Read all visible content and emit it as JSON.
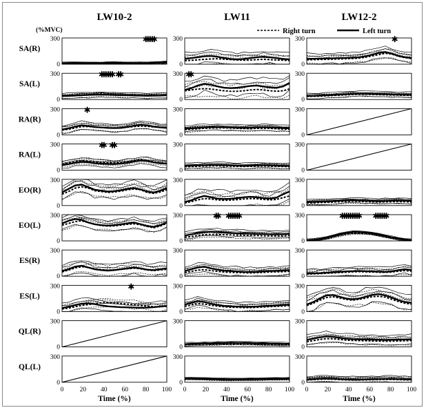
{
  "chart_data": {
    "type": "line",
    "columns": [
      "LW10-2",
      "LW11",
      "LW12-2"
    ],
    "rows": [
      "SA(R)",
      "SA(L)",
      "RA(R)",
      "RA(L)",
      "EO(R)",
      "EO(L)",
      "ES(R)",
      "ES(L)",
      "QL(R)",
      "QL(L)"
    ],
    "ylabel_unit": "(%MVC)",
    "xlabel": "Time (%)",
    "xlim": [
      0,
      100
    ],
    "ylim": [
      0,
      300
    ],
    "xticks": [
      "0",
      "20",
      "40",
      "60",
      "80",
      "100"
    ],
    "yticks": [
      "0",
      "300"
    ],
    "legend": {
      "position": "top-right",
      "items": [
        {
          "name": "Right turn",
          "style": "dashed"
        },
        {
          "name": "Left turn",
          "style": "solid"
        }
      ]
    },
    "significance_marker": "✱",
    "significance": [
      {
        "column": "LW10-2",
        "row": "SA(R)",
        "x": [
          80,
          82,
          84,
          86,
          88
        ]
      },
      {
        "column": "LW10-2",
        "row": "SA(L)",
        "x": [
          38,
          40,
          42,
          44,
          46,
          48,
          54,
          56
        ]
      },
      {
        "column": "LW10-2",
        "row": "RA(R)",
        "x": [
          24
        ]
      },
      {
        "column": "LW10-2",
        "row": "RA(L)",
        "x": [
          38,
          40,
          48,
          50
        ]
      },
      {
        "column": "LW10-2",
        "row": "ES(L)",
        "x": [
          66
        ]
      },
      {
        "column": "LW11",
        "row": "SA(L)",
        "x": [
          4,
          6
        ]
      },
      {
        "column": "LW11",
        "row": "EO(L)",
        "x": [
          30,
          32,
          42,
          44,
          46,
          48,
          50,
          52
        ]
      },
      {
        "column": "LW12-2",
        "row": "SA(R)",
        "x": [
          84
        ]
      },
      {
        "column": "LW12-2",
        "row": "EO(L)",
        "x": [
          34,
          36,
          38,
          40,
          42,
          44,
          46,
          48,
          50,
          66,
          68,
          70,
          72,
          74,
          76
        ]
      }
    ],
    "panels": [
      {
        "column": "LW10-2",
        "row": "SA(R)",
        "left_mean": [
          10,
          12,
          14,
          12,
          10,
          9,
          10,
          12,
          14,
          12,
          11,
          10,
          11,
          12,
          15,
          18,
          22
        ],
        "right_mean": [
          8,
          10,
          12,
          14,
          13,
          11,
          10,
          11,
          12,
          13,
          12,
          11,
          10,
          12,
          14,
          16,
          20
        ],
        "spread": 14
      },
      {
        "column": "LW10-2",
        "row": "SA(L)",
        "left_mean": [
          40,
          42,
          46,
          50,
          52,
          55,
          56,
          55,
          52,
          50,
          48,
          46,
          44,
          43,
          44,
          46,
          50
        ],
        "right_mean": [
          38,
          40,
          44,
          48,
          54,
          60,
          64,
          62,
          58,
          54,
          50,
          48,
          46,
          44,
          44,
          45,
          48
        ],
        "spread": 30
      },
      {
        "column": "LW10-2",
        "row": "RA(R)",
        "left_mean": [
          60,
          75,
          95,
          110,
          100,
          90,
          85,
          80,
          78,
          80,
          90,
          105,
          115,
          110,
          95,
          85,
          80
        ],
        "right_mean": [
          55,
          65,
          80,
          95,
          95,
          90,
          85,
          82,
          80,
          82,
          88,
          95,
          100,
          98,
          90,
          85,
          82
        ],
        "spread": 45
      },
      {
        "column": "LW10-2",
        "row": "RA(L)",
        "left_mean": [
          60,
          70,
          85,
          95,
          90,
          80,
          75,
          72,
          70,
          75,
          85,
          100,
          110,
          105,
          90,
          80,
          75
        ],
        "right_mean": [
          70,
          80,
          95,
          110,
          105,
          95,
          90,
          85,
          82,
          85,
          95,
          110,
          120,
          110,
          95,
          85,
          80
        ],
        "spread": 40
      },
      {
        "column": "LW10-2",
        "row": "EO(R)",
        "left_mean": [
          150,
          190,
          230,
          240,
          210,
          180,
          170,
          160,
          165,
          175,
          190,
          200,
          185,
          160,
          150,
          170,
          200
        ],
        "right_mean": [
          130,
          160,
          200,
          215,
          200,
          170,
          160,
          150,
          155,
          165,
          180,
          190,
          180,
          150,
          140,
          155,
          180
        ],
        "spread": 80
      },
      {
        "column": "LW10-2",
        "row": "EO(L)",
        "left_mean": [
          200,
          230,
          250,
          240,
          210,
          190,
          180,
          175,
          180,
          190,
          200,
          210,
          190,
          170,
          160,
          180,
          210
        ],
        "right_mean": [
          180,
          200,
          220,
          230,
          210,
          190,
          175,
          170,
          172,
          180,
          190,
          195,
          185,
          165,
          150,
          170,
          200
        ],
        "spread": 60
      },
      {
        "column": "LW10-2",
        "row": "ES(R)",
        "left_mean": [
          60,
          80,
          110,
          120,
          100,
          80,
          70,
          65,
          70,
          80,
          90,
          100,
          90,
          75,
          70,
          80,
          90
        ],
        "right_mean": [
          50,
          70,
          95,
          110,
          100,
          85,
          75,
          70,
          72,
          80,
          85,
          92,
          85,
          72,
          65,
          72,
          80
        ],
        "spread": 70
      },
      {
        "column": "LW10-2",
        "row": "ES(L)",
        "left_mean": [
          40,
          55,
          75,
          90,
          95,
          85,
          70,
          60,
          55,
          50,
          48,
          46,
          44,
          45,
          50,
          58,
          65
        ],
        "right_mean": [
          30,
          40,
          55,
          70,
          80,
          90,
          100,
          105,
          100,
          92,
          85,
          78,
          70,
          62,
          55,
          55,
          60
        ],
        "spread": 55
      },
      {
        "column": "LW10-2",
        "row": "QL(R)",
        "diagonal": true
      },
      {
        "column": "LW10-2",
        "row": "QL(L)",
        "diagonal": true
      },
      {
        "column": "LW11",
        "row": "SA(R)",
        "left_mean": [
          60,
          70,
          80,
          90,
          95,
          85,
          70,
          60,
          55,
          60,
          70,
          80,
          85,
          80,
          70,
          60,
          55
        ],
        "right_mean": [
          40,
          45,
          50,
          55,
          60,
          62,
          58,
          52,
          48,
          46,
          48,
          52,
          55,
          52,
          48,
          45,
          42
        ],
        "spread": 70
      },
      {
        "column": "LW11",
        "row": "SA(L)",
        "left_mean": [
          110,
          130,
          160,
          180,
          170,
          150,
          135,
          130,
          135,
          145,
          155,
          160,
          150,
          140,
          135,
          150,
          190
        ],
        "right_mean": [
          100,
          110,
          120,
          125,
          120,
          110,
          100,
          95,
          95,
          100,
          110,
          115,
          110,
          100,
          95,
          100,
          120
        ],
        "spread": 90
      },
      {
        "column": "LW11",
        "row": "RA(R)",
        "left_mean": [
          70,
          75,
          80,
          85,
          88,
          90,
          88,
          85,
          82,
          80,
          82,
          85,
          88,
          86,
          82,
          78,
          75
        ],
        "right_mean": [
          60,
          65,
          70,
          75,
          78,
          80,
          80,
          78,
          75,
          72,
          72,
          74,
          76,
          74,
          70,
          66,
          62
        ],
        "spread": 35
      },
      {
        "column": "LW11",
        "row": "RA(L)",
        "left_mean": [
          50,
          52,
          55,
          58,
          60,
          60,
          58,
          55,
          52,
          50,
          52,
          55,
          58,
          56,
          52,
          50,
          48
        ],
        "right_mean": [
          40,
          42,
          45,
          48,
          50,
          50,
          48,
          46,
          44,
          42,
          44,
          46,
          48,
          46,
          44,
          42,
          40
        ],
        "spread": 30
      },
      {
        "column": "LW11",
        "row": "EO(R)",
        "left_mean": [
          40,
          60,
          90,
          110,
          95,
          80,
          75,
          78,
          85,
          95,
          100,
          95,
          85,
          80,
          90,
          130,
          160
        ],
        "right_mean": [
          30,
          45,
          65,
          80,
          75,
          65,
          60,
          62,
          68,
          75,
          80,
          78,
          70,
          65,
          70,
          90,
          110
        ],
        "spread": 90
      },
      {
        "column": "LW11",
        "row": "EO(L)",
        "left_mean": [
          60,
          75,
          90,
          100,
          105,
          100,
          95,
          90,
          88,
          85,
          82,
          80,
          78,
          76,
          75,
          78,
          80
        ],
        "right_mean": [
          40,
          50,
          62,
          70,
          74,
          72,
          70,
          68,
          66,
          64,
          62,
          60,
          58,
          56,
          55,
          58,
          60
        ],
        "spread": 40
      },
      {
        "column": "LW11",
        "row": "ES(R)",
        "left_mean": [
          60,
          80,
          100,
          110,
          90,
          75,
          65,
          60,
          55,
          50,
          48,
          50,
          55,
          60,
          62,
          65,
          70
        ],
        "right_mean": [
          40,
          55,
          70,
          75,
          65,
          55,
          48,
          45,
          42,
          40,
          38,
          40,
          44,
          48,
          50,
          52,
          55
        ],
        "spread": 50
      },
      {
        "column": "LW11",
        "row": "ES(L)",
        "left_mean": [
          80,
          100,
          120,
          110,
          90,
          75,
          65,
          60,
          58,
          55,
          55,
          58,
          62,
          66,
          70,
          75,
          80
        ],
        "right_mean": [
          60,
          75,
          90,
          85,
          72,
          62,
          55,
          50,
          48,
          46,
          46,
          48,
          52,
          56,
          60,
          64,
          68
        ],
        "spread": 50
      },
      {
        "column": "LW11",
        "row": "QL(R)",
        "left_mean": [
          30,
          32,
          34,
          36,
          38,
          40,
          42,
          44,
          45,
          44,
          42,
          40,
          38,
          36,
          35,
          34,
          33
        ],
        "right_mean": [
          25,
          27,
          29,
          31,
          33,
          35,
          36,
          37,
          38,
          37,
          35,
          33,
          31,
          30,
          29,
          28,
          27
        ],
        "spread": 18
      },
      {
        "column": "LW11",
        "row": "QL(L)",
        "left_mean": [
          45,
          44,
          42,
          40,
          38,
          36,
          35,
          34,
          34,
          35,
          36,
          37,
          38,
          39,
          40,
          41,
          42
        ],
        "right_mean": [
          38,
          37,
          35,
          33,
          31,
          29,
          28,
          27,
          27,
          28,
          29,
          30,
          31,
          32,
          33,
          34,
          35
        ],
        "spread": 12
      },
      {
        "column": "LW12-2",
        "row": "SA(R)",
        "left_mean": [
          60,
          62,
          64,
          66,
          68,
          70,
          72,
          75,
          80,
          90,
          110,
          130,
          140,
          120,
          95,
          80,
          70
        ],
        "right_mean": [
          50,
          52,
          54,
          56,
          58,
          60,
          62,
          65,
          70,
          80,
          95,
          110,
          125,
          115,
          90,
          75,
          65
        ],
        "spread": 60
      },
      {
        "column": "LW12-2",
        "row": "SA(L)",
        "left_mean": [
          40,
          42,
          44,
          48,
          52,
          56,
          60,
          64,
          66,
          66,
          64,
          62,
          60,
          58,
          56,
          55,
          54
        ],
        "right_mean": [
          35,
          37,
          39,
          42,
          46,
          50,
          54,
          58,
          60,
          60,
          58,
          56,
          54,
          52,
          50,
          48,
          47
        ],
        "spread": 30
      },
      {
        "column": "LW12-2",
        "row": "RA(R)",
        "diagonal": true
      },
      {
        "column": "LW12-2",
        "row": "RA(L)",
        "diagonal": true
      },
      {
        "column": "LW12-2",
        "row": "EO(R)",
        "left_mean": [
          40,
          42,
          44,
          46,
          50,
          55,
          58,
          60,
          58,
          55,
          52,
          50,
          52,
          55,
          58,
          56,
          52
        ],
        "right_mean": [
          30,
          32,
          34,
          36,
          40,
          44,
          48,
          50,
          48,
          45,
          42,
          40,
          42,
          44,
          46,
          44,
          40
        ],
        "spread": 30
      },
      {
        "column": "LW12-2",
        "row": "EO(L)",
        "left_mean": [
          5,
          10,
          20,
          35,
          55,
          75,
          90,
          100,
          100,
          95,
          85,
          70,
          55,
          40,
          25,
          12,
          5
        ],
        "right_mean": [
          4,
          8,
          16,
          28,
          45,
          62,
          78,
          88,
          90,
          86,
          78,
          64,
          50,
          36,
          22,
          10,
          4
        ],
        "spread": 15
      },
      {
        "column": "LW12-2",
        "row": "ES(R)",
        "left_mean": [
          30,
          32,
          35,
          40,
          45,
          50,
          55,
          58,
          60,
          58,
          55,
          52,
          50,
          55,
          70,
          80,
          70
        ],
        "right_mean": [
          25,
          27,
          30,
          34,
          38,
          42,
          46,
          50,
          52,
          50,
          48,
          45,
          44,
          48,
          58,
          65,
          58
        ],
        "spread": 50
      },
      {
        "column": "LW12-2",
        "row": "ES(L)",
        "left_mean": [
          80,
          110,
          150,
          185,
          190,
          170,
          150,
          140,
          150,
          170,
          190,
          200,
          185,
          160,
          130,
          110,
          100
        ],
        "right_mean": [
          70,
          95,
          130,
          160,
          170,
          155,
          140,
          130,
          140,
          155,
          170,
          175,
          165,
          140,
          115,
          95,
          85
        ],
        "spread": 90
      },
      {
        "column": "LW12-2",
        "row": "QL(R)",
        "left_mean": [
          80,
          95,
          110,
          120,
          115,
          105,
          95,
          90,
          88,
          86,
          84,
          82,
          80,
          82,
          84,
          86,
          88
        ],
        "right_mean": [
          60,
          72,
          85,
          95,
          92,
          85,
          78,
          74,
          72,
          70,
          68,
          66,
          65,
          66,
          68,
          70,
          72
        ],
        "spread": 55
      },
      {
        "column": "LW12-2",
        "row": "QL(L)",
        "left_mean": [
          30,
          35,
          40,
          42,
          40,
          36,
          32,
          30,
          30,
          32,
          34,
          36,
          38,
          38,
          36,
          34,
          32
        ],
        "right_mean": [
          25,
          30,
          34,
          36,
          34,
          30,
          27,
          25,
          25,
          27,
          29,
          31,
          32,
          32,
          30,
          28,
          27
        ],
        "spread": 35
      }
    ]
  }
}
